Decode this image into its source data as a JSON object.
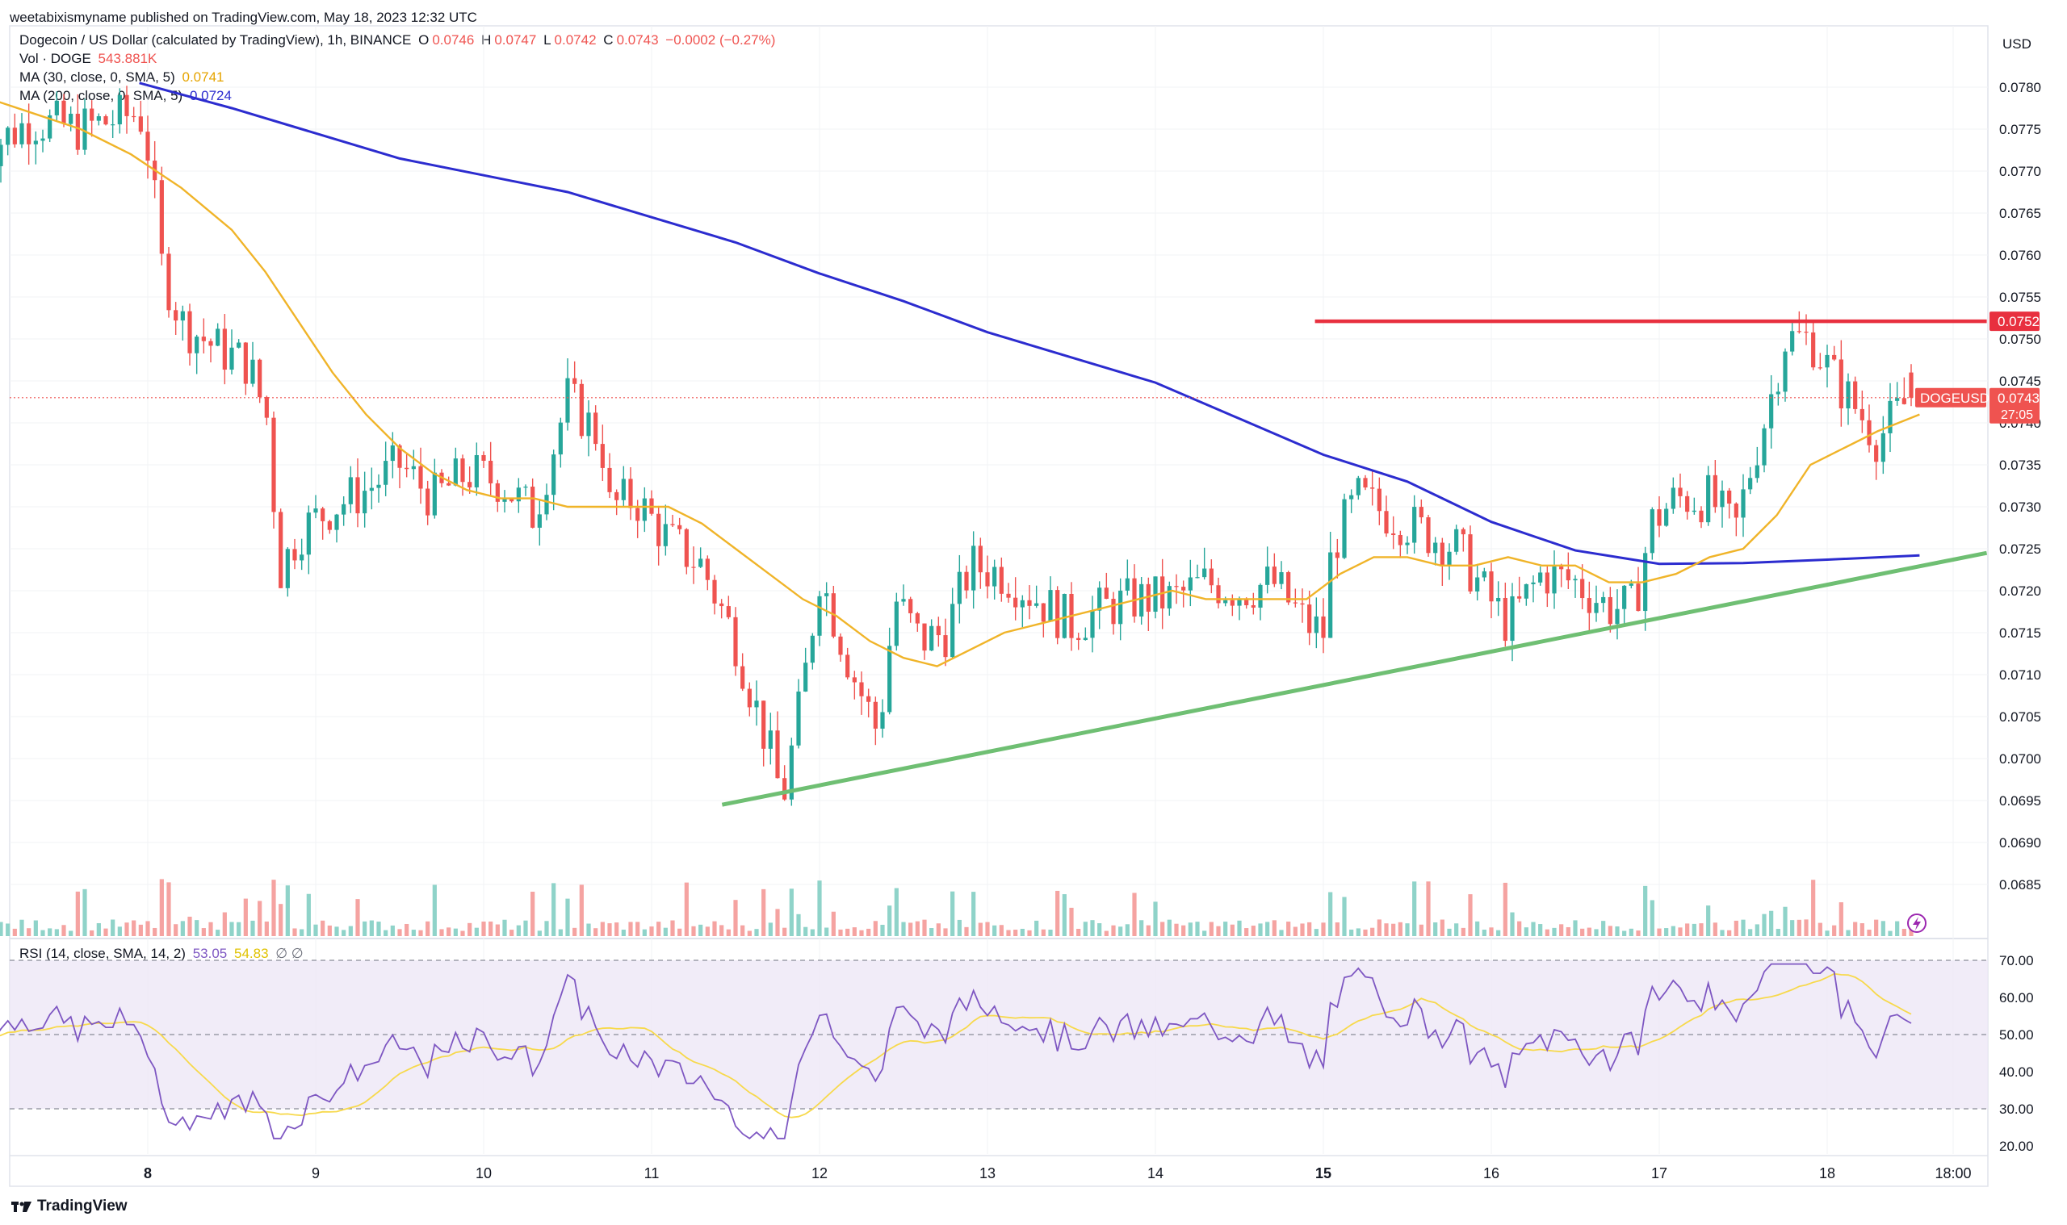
{
  "published_line": "weetabixismyname published on TradingView.com, May 18, 2023 12:32 UTC",
  "legend": {
    "symbol": "Dogecoin / US Dollar (calculated by TradingView), 1h, BINANCE",
    "o_label": "O",
    "o_value": "0.0746",
    "h_label": "H",
    "h_value": "0.0747",
    "l_label": "L",
    "l_value": "0.0742",
    "c_label": "C",
    "c_value": "0.0743",
    "change": "−0.0002 (−0.27%)",
    "vol_label": "Vol · DOGE",
    "vol_value": "543.881K",
    "ma30_label": "MA (30, close, 0, SMA, 5)",
    "ma30_value": "0.0741",
    "ma200_label": "MA (200, close, 0, SMA, 5)",
    "ma200_value": "0.0724",
    "rsi_label": "RSI (14, close, SMA, 14, 2)",
    "rsi_value": "53.05",
    "rsi_sma_value": "54.83",
    "rsi_extra": "∅ ∅"
  },
  "colors": {
    "up": "#26a69a",
    "down": "#ef5350",
    "ma30": "#f0b429",
    "ma200": "#2c2ccf",
    "resistance": "#e8303f",
    "support": "#6fbf73",
    "rsi": "#7e57c2",
    "rsi_sma": "#f7d94c",
    "rsi_band": "#ede7f6"
  },
  "footer_brand": "TradingView",
  "chart_data": {
    "type": "candlestick",
    "currency_label": "USD",
    "price_axis": {
      "ylim": [
        0.0681,
        0.0785
      ],
      "ticks": [
        "0.0780",
        "0.0775",
        "0.0770",
        "0.0765",
        "0.0760",
        "0.0755",
        "0.0750",
        "0.0745",
        "0.0740",
        "0.0735",
        "0.0730",
        "0.0725",
        "0.0720",
        "0.0715",
        "0.0710",
        "0.0705",
        "0.0700",
        "0.0695",
        "0.0690",
        "0.0685"
      ]
    },
    "time_axis": {
      "ticks": [
        {
          "label": "8",
          "day": 8,
          "bold": true
        },
        {
          "label": "9",
          "day": 9
        },
        {
          "label": "10",
          "day": 10
        },
        {
          "label": "11",
          "day": 11
        },
        {
          "label": "12",
          "day": 12
        },
        {
          "label": "13",
          "day": 13
        },
        {
          "label": "14",
          "day": 14
        },
        {
          "label": "15",
          "day": 15,
          "bold": true
        },
        {
          "label": "16",
          "day": 16
        },
        {
          "label": "17",
          "day": 17
        },
        {
          "label": "18",
          "day": 18
        },
        {
          "label": "18:00",
          "day": 18.75
        }
      ],
      "xlim_days": [
        7.0,
        18.95
      ]
    },
    "price_labels": {
      "resistance": "0.0752",
      "symbol_tag": "DOGEUSD",
      "last_price": "0.0743",
      "countdown": "27:05"
    },
    "resistance_line": {
      "price": 0.07521,
      "from_day": 14.95,
      "to_day": 18.95
    },
    "support_line": {
      "from_day": 11.42,
      "from_price": 0.06945,
      "to_day": 18.95,
      "to_price": 0.07245
    },
    "ma200_points": [
      [
        7.95,
        0.07805
      ],
      [
        8.5,
        0.07775
      ],
      [
        9,
        0.07745
      ],
      [
        9.5,
        0.07715
      ],
      [
        10,
        0.07695
      ],
      [
        10.5,
        0.07675
      ],
      [
        11,
        0.07645
      ],
      [
        11.5,
        0.07615
      ],
      [
        12,
        0.07578
      ],
      [
        12.5,
        0.07545
      ],
      [
        13,
        0.07508
      ],
      [
        13.5,
        0.07478
      ],
      [
        14,
        0.07448
      ],
      [
        14.5,
        0.07405
      ],
      [
        15,
        0.07362
      ],
      [
        15.5,
        0.0733
      ],
      [
        16,
        0.07282
      ],
      [
        16.5,
        0.07248
      ],
      [
        17,
        0.07232
      ],
      [
        17.5,
        0.07233
      ],
      [
        18,
        0.07237
      ],
      [
        18.55,
        0.07242
      ]
    ],
    "ma30_points": [
      [
        7.0,
        0.0779
      ],
      [
        7.3,
        0.0777
      ],
      [
        7.6,
        0.0775
      ],
      [
        7.9,
        0.0772
      ],
      [
        8.2,
        0.0768
      ],
      [
        8.5,
        0.0763
      ],
      [
        8.7,
        0.0758
      ],
      [
        8.9,
        0.0752
      ],
      [
        9.1,
        0.0746
      ],
      [
        9.3,
        0.0741
      ],
      [
        9.5,
        0.0737
      ],
      [
        9.7,
        0.0734
      ],
      [
        9.9,
        0.0732
      ],
      [
        10.1,
        0.0731
      ],
      [
        10.3,
        0.0731
      ],
      [
        10.5,
        0.073
      ],
      [
        10.7,
        0.073
      ],
      [
        10.9,
        0.073
      ],
      [
        11.1,
        0.073
      ],
      [
        11.3,
        0.0728
      ],
      [
        11.5,
        0.0725
      ],
      [
        11.7,
        0.0722
      ],
      [
        11.9,
        0.0719
      ],
      [
        12.1,
        0.0717
      ],
      [
        12.3,
        0.0714
      ],
      [
        12.5,
        0.0712
      ],
      [
        12.7,
        0.0711
      ],
      [
        12.9,
        0.0713
      ],
      [
        13.1,
        0.0715
      ],
      [
        13.3,
        0.0716
      ],
      [
        13.5,
        0.0717
      ],
      [
        13.7,
        0.0718
      ],
      [
        13.9,
        0.0719
      ],
      [
        14.1,
        0.072
      ],
      [
        14.3,
        0.0719
      ],
      [
        14.5,
        0.0719
      ],
      [
        14.7,
        0.0719
      ],
      [
        14.9,
        0.0719
      ],
      [
        15.1,
        0.0722
      ],
      [
        15.3,
        0.0724
      ],
      [
        15.5,
        0.0724
      ],
      [
        15.7,
        0.0723
      ],
      [
        15.9,
        0.0723
      ],
      [
        16.1,
        0.0724
      ],
      [
        16.3,
        0.0723
      ],
      [
        16.5,
        0.0723
      ],
      [
        16.7,
        0.0721
      ],
      [
        16.9,
        0.0721
      ],
      [
        17.1,
        0.0722
      ],
      [
        17.3,
        0.0724
      ],
      [
        17.5,
        0.0725
      ],
      [
        17.7,
        0.0729
      ],
      [
        17.9,
        0.0735
      ],
      [
        18.1,
        0.0737
      ],
      [
        18.3,
        0.0739
      ],
      [
        18.55,
        0.0741
      ]
    ],
    "volume_ylim": [
      0,
      1
    ],
    "rsi_panel": {
      "ylim": [
        15,
        72
      ],
      "ticks": [
        "70.00",
        "60.00",
        "50.00",
        "40.00",
        "30.00",
        "20.00"
      ],
      "band": [
        30,
        70
      ],
      "dashed_levels": [
        70,
        50,
        30
      ]
    },
    "current_rsi": 53.05
  }
}
